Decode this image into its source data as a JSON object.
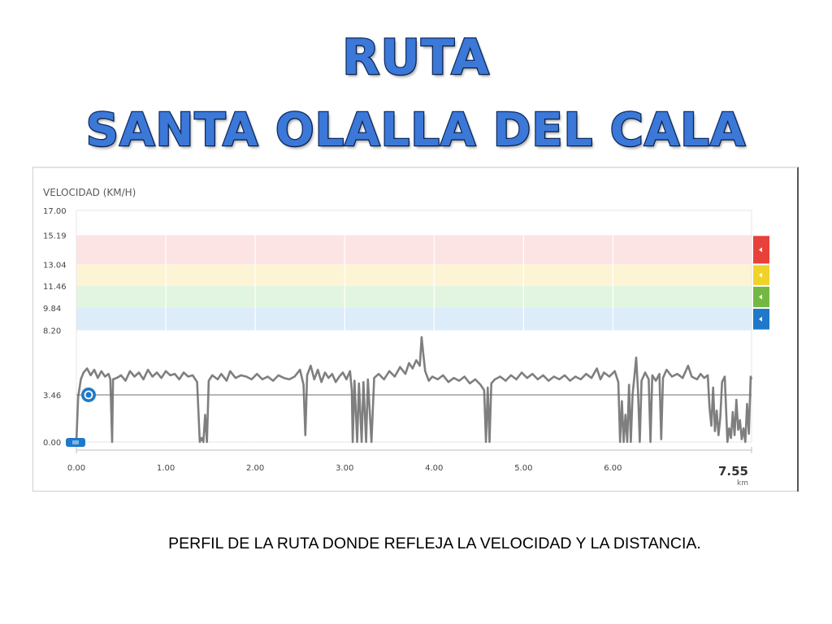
{
  "slide": {
    "title_line1": "RUTA",
    "title_line2": "SANTA OLALLA DEL CALA",
    "caption": "PERFIL DE LA RUTA DONDE REFLEJA LA VELOCIDAD Y LA DISTANCIA."
  },
  "chart_data": {
    "type": "line",
    "title": "VELOCIDAD (KM/H)",
    "ylim": [
      0,
      17
    ],
    "xlim": [
      0,
      7.55
    ],
    "y_ticks": [
      "0.00",
      "3.46",
      "8.20",
      "9.84",
      "11.46",
      "13.04",
      "15.19",
      "17.00"
    ],
    "x_ticks": [
      "0.00",
      "1.00",
      "2.00",
      "3.00",
      "4.00",
      "5.00",
      "6.00"
    ],
    "x_end_label": "7.55",
    "x_unit": "km",
    "average_line": 3.46,
    "grid": true,
    "zones": [
      {
        "from": 13.04,
        "to": 15.19,
        "color": "#fde4e4",
        "marker_color": "#e8413a"
      },
      {
        "from": 11.46,
        "to": 13.04,
        "color": "#fdf4d6",
        "marker_color": "#f0d22a"
      },
      {
        "from": 9.84,
        "to": 11.46,
        "color": "#e2f5e0",
        "marker_color": "#74b844"
      },
      {
        "from": 8.2,
        "to": 9.84,
        "color": "#dcecf8",
        "marker_color": "#1f79c8"
      }
    ],
    "series": [
      {
        "color": "#7f7f7f",
        "points": [
          [
            0.0,
            0.0
          ],
          [
            0.02,
            3.3
          ],
          [
            0.05,
            4.6
          ],
          [
            0.08,
            5.1
          ],
          [
            0.12,
            5.4
          ],
          [
            0.16,
            4.9
          ],
          [
            0.2,
            5.3
          ],
          [
            0.24,
            4.7
          ],
          [
            0.28,
            5.2
          ],
          [
            0.32,
            4.8
          ],
          [
            0.36,
            5.0
          ],
          [
            0.38,
            4.6
          ],
          [
            0.4,
            0.0
          ],
          [
            0.41,
            4.6
          ],
          [
            0.45,
            4.7
          ],
          [
            0.5,
            4.9
          ],
          [
            0.55,
            4.5
          ],
          [
            0.6,
            5.2
          ],
          [
            0.65,
            4.8
          ],
          [
            0.7,
            5.1
          ],
          [
            0.75,
            4.6
          ],
          [
            0.8,
            5.3
          ],
          [
            0.85,
            4.8
          ],
          [
            0.9,
            5.1
          ],
          [
            0.95,
            4.7
          ],
          [
            1.0,
            5.2
          ],
          [
            1.05,
            4.9
          ],
          [
            1.1,
            5.0
          ],
          [
            1.15,
            4.6
          ],
          [
            1.2,
            5.1
          ],
          [
            1.25,
            4.8
          ],
          [
            1.3,
            4.9
          ],
          [
            1.35,
            4.4
          ],
          [
            1.38,
            0.0
          ],
          [
            1.4,
            0.3
          ],
          [
            1.42,
            0.0
          ],
          [
            1.44,
            2.0
          ],
          [
            1.46,
            0.0
          ],
          [
            1.48,
            4.5
          ],
          [
            1.52,
            4.9
          ],
          [
            1.58,
            4.6
          ],
          [
            1.62,
            5.0
          ],
          [
            1.68,
            4.5
          ],
          [
            1.72,
            5.2
          ],
          [
            1.78,
            4.7
          ],
          [
            1.84,
            4.9
          ],
          [
            1.9,
            4.8
          ],
          [
            1.96,
            4.6
          ],
          [
            2.02,
            5.0
          ],
          [
            2.08,
            4.6
          ],
          [
            2.14,
            4.8
          ],
          [
            2.2,
            4.5
          ],
          [
            2.26,
            4.9
          ],
          [
            2.32,
            4.7
          ],
          [
            2.38,
            4.6
          ],
          [
            2.44,
            4.8
          ],
          [
            2.5,
            5.3
          ],
          [
            2.54,
            4.2
          ],
          [
            2.56,
            0.5
          ],
          [
            2.58,
            4.9
          ],
          [
            2.62,
            5.6
          ],
          [
            2.66,
            4.6
          ],
          [
            2.7,
            5.3
          ],
          [
            2.74,
            4.4
          ],
          [
            2.78,
            5.1
          ],
          [
            2.82,
            4.7
          ],
          [
            2.86,
            5.0
          ],
          [
            2.9,
            4.4
          ],
          [
            2.94,
            4.8
          ],
          [
            2.98,
            5.1
          ],
          [
            3.02,
            4.6
          ],
          [
            3.06,
            5.2
          ],
          [
            3.08,
            3.8
          ],
          [
            3.09,
            0.0
          ],
          [
            3.11,
            4.5
          ],
          [
            3.14,
            0.0
          ],
          [
            3.16,
            4.3
          ],
          [
            3.19,
            0.0
          ],
          [
            3.21,
            4.4
          ],
          [
            3.24,
            0.0
          ],
          [
            3.26,
            4.6
          ],
          [
            3.3,
            0.0
          ],
          [
            3.33,
            4.7
          ],
          [
            3.38,
            5.0
          ],
          [
            3.44,
            4.6
          ],
          [
            3.5,
            5.2
          ],
          [
            3.56,
            4.8
          ],
          [
            3.62,
            5.5
          ],
          [
            3.68,
            5.0
          ],
          [
            3.72,
            5.8
          ],
          [
            3.76,
            5.4
          ],
          [
            3.8,
            6.0
          ],
          [
            3.84,
            5.6
          ],
          [
            3.86,
            7.7
          ],
          [
            3.88,
            6.4
          ],
          [
            3.9,
            5.2
          ],
          [
            3.94,
            4.5
          ],
          [
            3.98,
            4.8
          ],
          [
            4.04,
            4.6
          ],
          [
            4.1,
            4.9
          ],
          [
            4.16,
            4.4
          ],
          [
            4.22,
            4.7
          ],
          [
            4.28,
            4.5
          ],
          [
            4.34,
            4.8
          ],
          [
            4.4,
            4.3
          ],
          [
            4.46,
            4.6
          ],
          [
            4.52,
            4.2
          ],
          [
            4.56,
            3.8
          ],
          [
            4.58,
            0.0
          ],
          [
            4.6,
            4.0
          ],
          [
            4.62,
            0.0
          ],
          [
            4.64,
            4.3
          ],
          [
            4.68,
            4.6
          ],
          [
            4.74,
            4.8
          ],
          [
            4.8,
            4.5
          ],
          [
            4.86,
            4.9
          ],
          [
            4.92,
            4.6
          ],
          [
            4.98,
            5.1
          ],
          [
            5.04,
            4.7
          ],
          [
            5.1,
            5.0
          ],
          [
            5.16,
            4.6
          ],
          [
            5.22,
            4.9
          ],
          [
            5.28,
            4.5
          ],
          [
            5.34,
            4.8
          ],
          [
            5.4,
            4.6
          ],
          [
            5.46,
            4.9
          ],
          [
            5.52,
            4.5
          ],
          [
            5.58,
            4.8
          ],
          [
            5.64,
            4.6
          ],
          [
            5.7,
            5.0
          ],
          [
            5.76,
            4.7
          ],
          [
            5.82,
            5.4
          ],
          [
            5.86,
            4.6
          ],
          [
            5.9,
            5.1
          ],
          [
            5.96,
            4.8
          ],
          [
            6.02,
            5.2
          ],
          [
            6.06,
            4.4
          ],
          [
            6.08,
            0.0
          ],
          [
            6.1,
            3.0
          ],
          [
            6.12,
            0.0
          ],
          [
            6.14,
            2.0
          ],
          [
            6.16,
            0.0
          ],
          [
            6.18,
            4.2
          ],
          [
            6.2,
            0.0
          ],
          [
            6.22,
            3.5
          ],
          [
            6.24,
            4.8
          ],
          [
            6.26,
            6.2
          ],
          [
            6.28,
            3.8
          ],
          [
            6.3,
            0.0
          ],
          [
            6.32,
            4.5
          ],
          [
            6.36,
            5.1
          ],
          [
            6.4,
            4.6
          ],
          [
            6.42,
            0.0
          ],
          [
            6.44,
            4.9
          ],
          [
            6.48,
            4.5
          ],
          [
            6.52,
            5.0
          ],
          [
            6.54,
            0.2
          ],
          [
            6.56,
            4.7
          ],
          [
            6.6,
            5.3
          ],
          [
            6.66,
            4.8
          ],
          [
            6.72,
            5.0
          ],
          [
            6.78,
            4.7
          ],
          [
            6.84,
            5.6
          ],
          [
            6.88,
            4.8
          ],
          [
            6.94,
            4.6
          ],
          [
            6.98,
            5.0
          ],
          [
            7.02,
            4.7
          ],
          [
            7.06,
            4.9
          ],
          [
            7.08,
            2.5
          ],
          [
            7.1,
            1.2
          ],
          [
            7.12,
            4.0
          ],
          [
            7.14,
            0.8
          ],
          [
            7.16,
            2.3
          ],
          [
            7.18,
            0.5
          ],
          [
            7.2,
            1.8
          ],
          [
            7.22,
            4.4
          ],
          [
            7.25,
            4.8
          ],
          [
            7.28,
            0.0
          ],
          [
            7.3,
            1.0
          ],
          [
            7.32,
            0.3
          ],
          [
            7.34,
            2.2
          ],
          [
            7.36,
            0.5
          ],
          [
            7.38,
            3.1
          ],
          [
            7.4,
            0.9
          ],
          [
            7.42,
            1.6
          ],
          [
            7.44,
            0.2
          ],
          [
            7.46,
            1.0
          ],
          [
            7.48,
            0.0
          ],
          [
            7.5,
            2.8
          ],
          [
            7.52,
            0.6
          ],
          [
            7.54,
            4.8
          ],
          [
            7.55,
            4.6
          ]
        ]
      }
    ]
  }
}
